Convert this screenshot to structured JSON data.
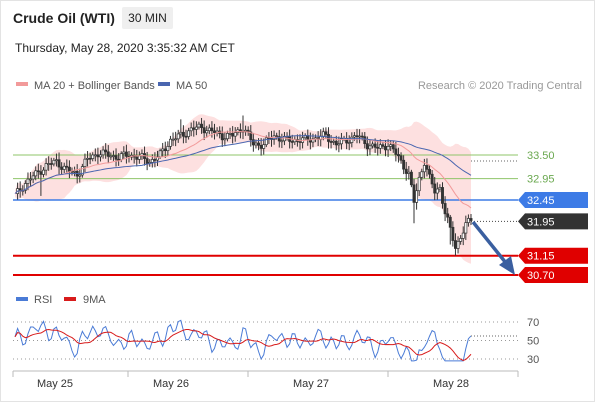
{
  "header": {
    "title": "Crude Oil (WTI)",
    "timeframe": "30 MIN",
    "datetime": "Thursday, May 28, 2020 3:35:32 AM CET"
  },
  "legend": {
    "ma20": "MA 20 + Bollinger Bands",
    "ma50": "MA 50",
    "credit": "Research © 2020 Trading Central",
    "rsi": "RSI",
    "rsi9": "9MA"
  },
  "colors": {
    "candle": "#333333",
    "bollinger_fill": "#fde0e0",
    "ma20": "#f29a9a",
    "ma50": "#4a66b0",
    "resistance": "#8fc46a",
    "pivot": "#3d7be6",
    "support": "#e00000",
    "arrow": "#3a5fa0",
    "rsi_line": "#4a7bd6",
    "rsi_ma": "#d81b1b"
  },
  "chart_data": [
    {
      "type": "candlestick",
      "title": "Crude Oil (WTI)",
      "x": [
        "May 25",
        "May 26",
        "May 27",
        "May 28"
      ],
      "ylim": [
        30.5,
        34.0
      ],
      "levels": [
        {
          "label": "33.50",
          "value": 33.5,
          "kind": "resistance"
        },
        {
          "label": "32.95",
          "value": 32.95,
          "kind": "resistance"
        },
        {
          "label": "32.45",
          "value": 32.45,
          "kind": "pivot"
        },
        {
          "label": "31.95",
          "value": 31.95,
          "kind": "current"
        },
        {
          "label": "31.15",
          "value": 31.15,
          "kind": "support"
        },
        {
          "label": "30.70",
          "value": 30.7,
          "kind": "support"
        }
      ],
      "close_points": [
        {
          "x": 0,
          "close": 32.55
        },
        {
          "x": 4,
          "close": 32.85
        },
        {
          "x": 8,
          "close": 33.05
        },
        {
          "x": 12,
          "close": 33.25
        },
        {
          "x": 16,
          "close": 33.35
        },
        {
          "x": 20,
          "close": 33.15
        },
        {
          "x": 24,
          "close": 33.05
        },
        {
          "x": 28,
          "close": 33.4
        },
        {
          "x": 32,
          "close": 33.55
        },
        {
          "x": 36,
          "close": 33.5
        },
        {
          "x": 40,
          "close": 33.45
        },
        {
          "x": 44,
          "close": 33.5
        },
        {
          "x": 48,
          "close": 33.45
        },
        {
          "x": 52,
          "close": 33.35
        },
        {
          "x": 56,
          "close": 33.5
        },
        {
          "x": 60,
          "close": 33.85
        },
        {
          "x": 64,
          "close": 33.95
        },
        {
          "x": 68,
          "close": 34.1
        },
        {
          "x": 72,
          "close": 34.15
        },
        {
          "x": 76,
          "close": 34.05
        },
        {
          "x": 80,
          "close": 33.95
        },
        {
          "x": 84,
          "close": 33.95
        },
        {
          "x": 88,
          "close": 34.15
        },
        {
          "x": 92,
          "close": 33.75
        },
        {
          "x": 96,
          "close": 33.75
        },
        {
          "x": 100,
          "close": 33.95
        },
        {
          "x": 104,
          "close": 33.85
        },
        {
          "x": 108,
          "close": 33.85
        },
        {
          "x": 112,
          "close": 33.85
        },
        {
          "x": 116,
          "close": 33.9
        },
        {
          "x": 120,
          "close": 33.95
        },
        {
          "x": 124,
          "close": 33.75
        },
        {
          "x": 128,
          "close": 33.85
        },
        {
          "x": 132,
          "close": 33.95
        },
        {
          "x": 136,
          "close": 33.75
        },
        {
          "x": 140,
          "close": 33.65
        },
        {
          "x": 144,
          "close": 33.75
        },
        {
          "x": 148,
          "close": 33.45
        },
        {
          "x": 152,
          "close": 33.05
        },
        {
          "x": 154,
          "close": 32.4
        },
        {
          "x": 156,
          "close": 32.95
        },
        {
          "x": 158,
          "close": 33.35
        },
        {
          "x": 160,
          "close": 32.95
        },
        {
          "x": 162,
          "close": 32.65
        },
        {
          "x": 164,
          "close": 32.75
        },
        {
          "x": 166,
          "close": 32.15
        },
        {
          "x": 168,
          "close": 31.75
        },
        {
          "x": 170,
          "close": 31.35
        },
        {
          "x": 172,
          "close": 31.6
        },
        {
          "x": 174,
          "close": 31.85
        },
        {
          "x": 176,
          "close": 32.0
        }
      ],
      "indicators": [
        "MA 20 + Bollinger Bands",
        "MA 50"
      ]
    },
    {
      "type": "line",
      "series": [
        {
          "name": "RSI"
        },
        {
          "name": "9MA"
        }
      ],
      "ylim": [
        30,
        70
      ],
      "yticks": [
        70,
        50,
        30
      ]
    }
  ]
}
